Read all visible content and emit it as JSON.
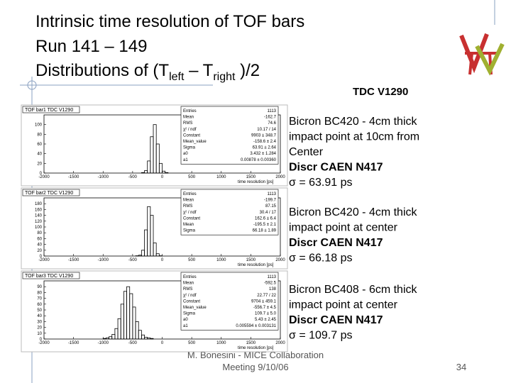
{
  "header": {
    "title_lines": [
      "Intrinsic time resolution of TOF bars",
      "Run 141 – 149"
    ],
    "title_line3": [
      "Distributions of (T",
      "left",
      " – T",
      "right",
      " )/2"
    ],
    "tdc": "TDC V1290"
  },
  "plots": [
    {
      "title": "TOF bar1  TDC V1290",
      "x_label": "time resolution [ps]",
      "xlim": [
        -2000,
        2000
      ],
      "xticks": [
        -2000,
        -1500,
        -1000,
        -500,
        0,
        500,
        1000,
        1500,
        2000
      ],
      "ylim": [
        0,
        120
      ],
      "yticks": [
        0,
        20,
        40,
        60,
        80,
        100
      ],
      "bins": [
        -400,
        -350,
        -300,
        -250,
        -200,
        -150,
        -100,
        -50,
        0,
        50,
        100
      ],
      "counts": [
        0,
        1,
        5,
        25,
        75,
        100,
        60,
        20,
        4,
        1
      ],
      "stats": [
        [
          "Entries",
          "1113"
        ],
        [
          "Mean",
          "-162.7"
        ],
        [
          "RMS",
          "74.6"
        ],
        [
          "χ² / ndf",
          "10.17 / 14"
        ],
        [
          "Constant",
          "9903 ± 348.7"
        ],
        [
          "Mean_value",
          "-158.6 ± 2.4"
        ],
        [
          "Sigma",
          "63.91 ± 2.64"
        ],
        [
          "a0",
          "3.432 ± 1.284"
        ],
        [
          "a1",
          "0.00878 ± 0.00360"
        ]
      ]
    },
    {
      "title": "TOF bar2  TDC V1290",
      "x_label": "time resolution [ps]",
      "xlim": [
        -2000,
        2000
      ],
      "xticks": [
        -2000,
        -1500,
        -1000,
        -500,
        0,
        500,
        1000,
        1500,
        2000
      ],
      "ylim": [
        0,
        200
      ],
      "yticks": [
        0,
        20,
        40,
        60,
        80,
        100,
        120,
        140,
        160,
        180
      ],
      "bins": [
        -450,
        -400,
        -350,
        -300,
        -250,
        -200,
        -150,
        -100,
        -50,
        0,
        50
      ],
      "counts": [
        1,
        3,
        20,
        90,
        170,
        140,
        45,
        8,
        1,
        0
      ],
      "stats": [
        [
          "Entries",
          "1113"
        ],
        [
          "Mean",
          "-199.7"
        ],
        [
          "RMS",
          "87.15"
        ],
        [
          "χ² / ndf",
          "30.4 / 17"
        ],
        [
          "Constant",
          "162.6 ± 6.4"
        ],
        [
          "Mean",
          "-195.5 ± 2.1"
        ],
        [
          "Sigma",
          "66.18 ± 1.89"
        ]
      ]
    },
    {
      "title": "TOF bar3  TDC V1290",
      "x_label": "time resolution [ps]",
      "xlim": [
        -2000,
        2000
      ],
      "xticks": [
        -2000,
        -1500,
        -1000,
        -500,
        0,
        500,
        1000,
        1500,
        2000
      ],
      "ylim": [
        0,
        100
      ],
      "yticks": [
        0,
        10,
        20,
        30,
        40,
        50,
        60,
        70,
        80,
        90
      ],
      "bins": [
        -1000,
        -950,
        -900,
        -850,
        -800,
        -750,
        -700,
        -650,
        -600,
        -550,
        -500,
        -450,
        -400,
        -350,
        -300,
        -250,
        -200,
        -150,
        -100
      ],
      "counts": [
        1,
        2,
        4,
        8,
        18,
        35,
        60,
        82,
        90,
        78,
        55,
        30,
        15,
        7,
        3,
        2,
        1,
        0
      ],
      "stats": [
        [
          "Entries",
          "1113"
        ],
        [
          "Mean",
          "-592.5"
        ],
        [
          "RMS",
          "138"
        ],
        [
          "χ² / ndf",
          "22.77 / 22"
        ],
        [
          "Constant",
          "9704 ± 459.1"
        ],
        [
          "Mean_value",
          "-556.7 ± 4.5"
        ],
        [
          "Sigma",
          "109.7 ± 5.0"
        ],
        [
          "a0",
          "5.43 ± 2.45"
        ],
        [
          "a1",
          "0.005594 ± 0.003131"
        ]
      ]
    }
  ],
  "descriptions": [
    {
      "lines": [
        "Bicron BC420 - 4cm thick",
        "impact point at 10cm from",
        "Center",
        "Discr CAEN N417",
        "σ = 63.91 ps"
      ],
      "bold_line": 3
    },
    {
      "lines": [
        "Bicron BC420 - 4cm thick",
        "impact point at center",
        "Discr CAEN N417",
        "σ = 66.18 ps"
      ],
      "bold_line": 2
    },
    {
      "lines": [
        "Bicron BC408 - 6cm thick",
        "impact point at center",
        "Discr CAEN N417",
        "σ = 109.7 ps"
      ],
      "bold_line": 2
    }
  ],
  "footer": {
    "credit": "M. Bonesini - MICE Collaboration",
    "meeting": "Meeting 9/10/06",
    "page": "34"
  }
}
